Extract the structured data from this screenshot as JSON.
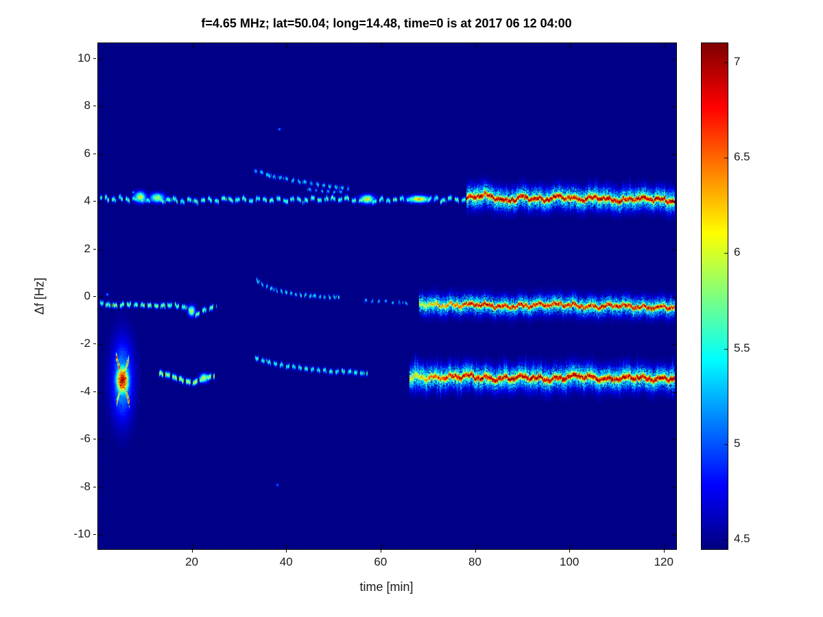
{
  "chart_data": {
    "type": "heatmap",
    "title": "f=4.65 MHz;  lat=50.04; long=14.48, time=0 is at 2017 06 12 04:00",
    "xlabel": "time [min]",
    "ylabel": "Δf [Hz]",
    "xlim": [
      0,
      122.5
    ],
    "ylim": [
      -10.6,
      10.66
    ],
    "x_ticks": [
      20,
      40,
      60,
      80,
      100,
      120
    ],
    "y_ticks": [
      10,
      8,
      6,
      4,
      2,
      0,
      -2,
      -4,
      -6,
      -8,
      -10
    ],
    "colormap": "jet",
    "grid": false,
    "colorbar": {
      "min": 4.45,
      "max": 7.1,
      "ticks": [
        4.5,
        5,
        5.5,
        6,
        6.5,
        7
      ],
      "position": "right"
    },
    "background_value": 4.47,
    "bands": [
      {
        "name": "upper-quiet",
        "path": [
          [
            0.5,
            4.15
          ],
          [
            10,
            4.1
          ],
          [
            20,
            4.05
          ],
          [
            30,
            4.1
          ],
          [
            40,
            4.08
          ],
          [
            50,
            4.12
          ],
          [
            57,
            4.05
          ],
          [
            65,
            4.1
          ],
          [
            78,
            4.1
          ]
        ],
        "peak": 5.6,
        "width": 0.07,
        "dash": [
          6,
          4
        ],
        "jitter": 0.04,
        "wiggle": 0.05,
        "spike_prob": 0.02,
        "spike_max": 0.3
      },
      {
        "name": "upper-strong",
        "path": [
          [
            78,
            4.15
          ],
          [
            82,
            4.3
          ],
          [
            86,
            4.05
          ],
          [
            90,
            4.2
          ],
          [
            94,
            4.1
          ],
          [
            98,
            4.25
          ],
          [
            102,
            4.1
          ],
          [
            106,
            4.2
          ],
          [
            110,
            4.05
          ],
          [
            114,
            4.15
          ],
          [
            118,
            4.1
          ],
          [
            122,
            4.05
          ]
        ],
        "peak": 7.05,
        "width": 0.1,
        "halo_peak": 5.8,
        "halo_width": 0.3,
        "jitter": 0.05,
        "wiggle": 0.05,
        "spike_prob": 0.45,
        "spike_max": 0.95
      },
      {
        "name": "upper-arc",
        "path": [
          [
            33,
            5.35
          ],
          [
            36,
            5.12
          ],
          [
            40,
            4.95
          ],
          [
            45,
            4.78
          ],
          [
            50,
            4.62
          ],
          [
            53,
            4.55
          ]
        ],
        "peak": 5.35,
        "width": 0.06,
        "dash": [
          4,
          5
        ],
        "jitter": 0.05
      },
      {
        "name": "upper-arc-2",
        "path": [
          [
            44,
            4.55
          ],
          [
            48,
            4.45
          ],
          [
            52,
            4.4
          ]
        ],
        "peak": 5.2,
        "width": 0.05,
        "dash": [
          3,
          6
        ],
        "jitter": 0.04
      },
      {
        "name": "mid-left",
        "path": [
          [
            0.5,
            -0.25
          ],
          [
            4,
            -0.35
          ],
          [
            8,
            -0.3
          ],
          [
            12,
            -0.38
          ],
          [
            16,
            -0.33
          ],
          [
            19,
            -0.45
          ],
          [
            20.5,
            -0.8
          ],
          [
            22,
            -0.55
          ],
          [
            25,
            -0.4
          ]
        ],
        "peak": 5.7,
        "width": 0.07,
        "dash": [
          6,
          4
        ],
        "jitter": 0.05,
        "spike_prob": 0.03,
        "spike_max": 0.4
      },
      {
        "name": "mid-arc",
        "path": [
          [
            33,
            0.78
          ],
          [
            35,
            0.5
          ],
          [
            38,
            0.28
          ],
          [
            42,
            0.12
          ],
          [
            47,
            0.03
          ],
          [
            51,
            0.0
          ]
        ],
        "peak": 5.4,
        "width": 0.06,
        "dash": [
          3,
          4
        ],
        "jitter": 0.05
      },
      {
        "name": "mid-sparse",
        "path": [
          [
            56,
            -0.15
          ],
          [
            61,
            -0.2
          ],
          [
            66,
            -0.25
          ]
        ],
        "peak": 5.3,
        "width": 0.05,
        "dash": [
          3,
          7
        ],
        "jitter": 0.06
      },
      {
        "name": "mid-strong",
        "path": [
          [
            68,
            -0.3
          ],
          [
            74,
            -0.35
          ],
          [
            80,
            -0.3
          ],
          [
            86,
            -0.4
          ],
          [
            92,
            -0.35
          ],
          [
            98,
            -0.3
          ],
          [
            104,
            -0.4
          ],
          [
            110,
            -0.35
          ],
          [
            116,
            -0.45
          ],
          [
            122,
            -0.4
          ]
        ],
        "peak": 6.95,
        "width": 0.09,
        "halo_peak": 5.7,
        "halo_width": 0.27,
        "jitter": 0.05,
        "wiggle": 0.05,
        "spike_prob": 0.3,
        "spike_max": 0.6,
        "ramp": [
          68,
          80
        ]
      },
      {
        "name": "low-left-seg",
        "path": [
          [
            13,
            -3.2
          ],
          [
            15.5,
            -3.3
          ],
          [
            18,
            -3.5
          ],
          [
            20,
            -3.6
          ],
          [
            22,
            -3.45
          ],
          [
            24.5,
            -3.3
          ]
        ],
        "peak": 5.9,
        "width": 0.08,
        "dash": [
          7,
          3
        ],
        "jitter": 0.05
      },
      {
        "name": "low-arc",
        "path": [
          [
            33,
            -2.55
          ],
          [
            36,
            -2.72
          ],
          [
            40,
            -2.9
          ],
          [
            44,
            -3.0
          ],
          [
            49,
            -3.1
          ],
          [
            54,
            -3.15
          ],
          [
            57,
            -3.2
          ]
        ],
        "peak": 5.5,
        "width": 0.07,
        "dash": [
          5,
          4
        ],
        "jitter": 0.05
      },
      {
        "name": "low-strong",
        "path": [
          [
            66,
            -3.35
          ],
          [
            72,
            -3.4
          ],
          [
            78,
            -3.3
          ],
          [
            84,
            -3.45
          ],
          [
            90,
            -3.35
          ],
          [
            96,
            -3.45
          ],
          [
            102,
            -3.3
          ],
          [
            108,
            -3.45
          ],
          [
            114,
            -3.35
          ],
          [
            118,
            -3.45
          ],
          [
            122,
            -3.4
          ]
        ],
        "peak": 7.05,
        "width": 0.11,
        "halo_peak": 5.8,
        "halo_width": 0.32,
        "jitter": 0.05,
        "wiggle": 0.06,
        "spike_prob": 0.5,
        "spike_max": 1.1,
        "ramp": [
          66,
          76
        ]
      },
      {
        "name": "burst-stroke-1",
        "path": [
          [
            3.8,
            -2.5
          ],
          [
            6.6,
            -4.5
          ]
        ],
        "peak": 6.6,
        "width": 0.12,
        "jitter": 0.03
      },
      {
        "name": "burst-stroke-2",
        "path": [
          [
            3.9,
            -4.4
          ],
          [
            6.4,
            -2.6
          ]
        ],
        "peak": 6.4,
        "width": 0.12,
        "jitter": 0.03
      }
    ],
    "blobs": [
      {
        "name": "burst-core",
        "t": 5.2,
        "f": -3.5,
        "st": 0.9,
        "sf": 0.4,
        "peak": 7.1,
        "spike_prob": 0.5,
        "spike_max": 1.8
      },
      {
        "name": "burst-halo",
        "t": 5.2,
        "f": -3.5,
        "st": 1.5,
        "sf": 1.1,
        "peak": 5.3
      },
      {
        "name": "upper-blob-1",
        "t": 9,
        "f": 4.2,
        "st": 0.8,
        "sf": 0.15,
        "peak": 6.0
      },
      {
        "name": "upper-blob-2",
        "t": 12.5,
        "f": 4.15,
        "st": 1.0,
        "sf": 0.13,
        "peak": 5.9
      },
      {
        "name": "upper-blob-3",
        "t": 57,
        "f": 4.1,
        "st": 1.0,
        "sf": 0.12,
        "peak": 6.1
      },
      {
        "name": "upper-blob-4",
        "t": 68,
        "f": 4.1,
        "st": 1.5,
        "sf": 0.1,
        "peak": 6.2
      },
      {
        "name": "mid-blob-1",
        "t": 19.8,
        "f": -0.6,
        "st": 0.5,
        "sf": 0.15,
        "peak": 5.9
      },
      {
        "name": "low-blob-1",
        "t": 22.5,
        "f": -3.4,
        "st": 0.6,
        "sf": 0.12,
        "peak": 6.0
      }
    ],
    "dots": [
      {
        "t": 38.5,
        "f": 7.05,
        "peak": 5.3
      },
      {
        "t": 38,
        "f": -7.9,
        "peak": 5.2
      },
      {
        "t": 2,
        "f": 0.1,
        "peak": 5.3
      },
      {
        "t": 7.5,
        "f": 4.4,
        "peak": 5.4
      }
    ]
  }
}
